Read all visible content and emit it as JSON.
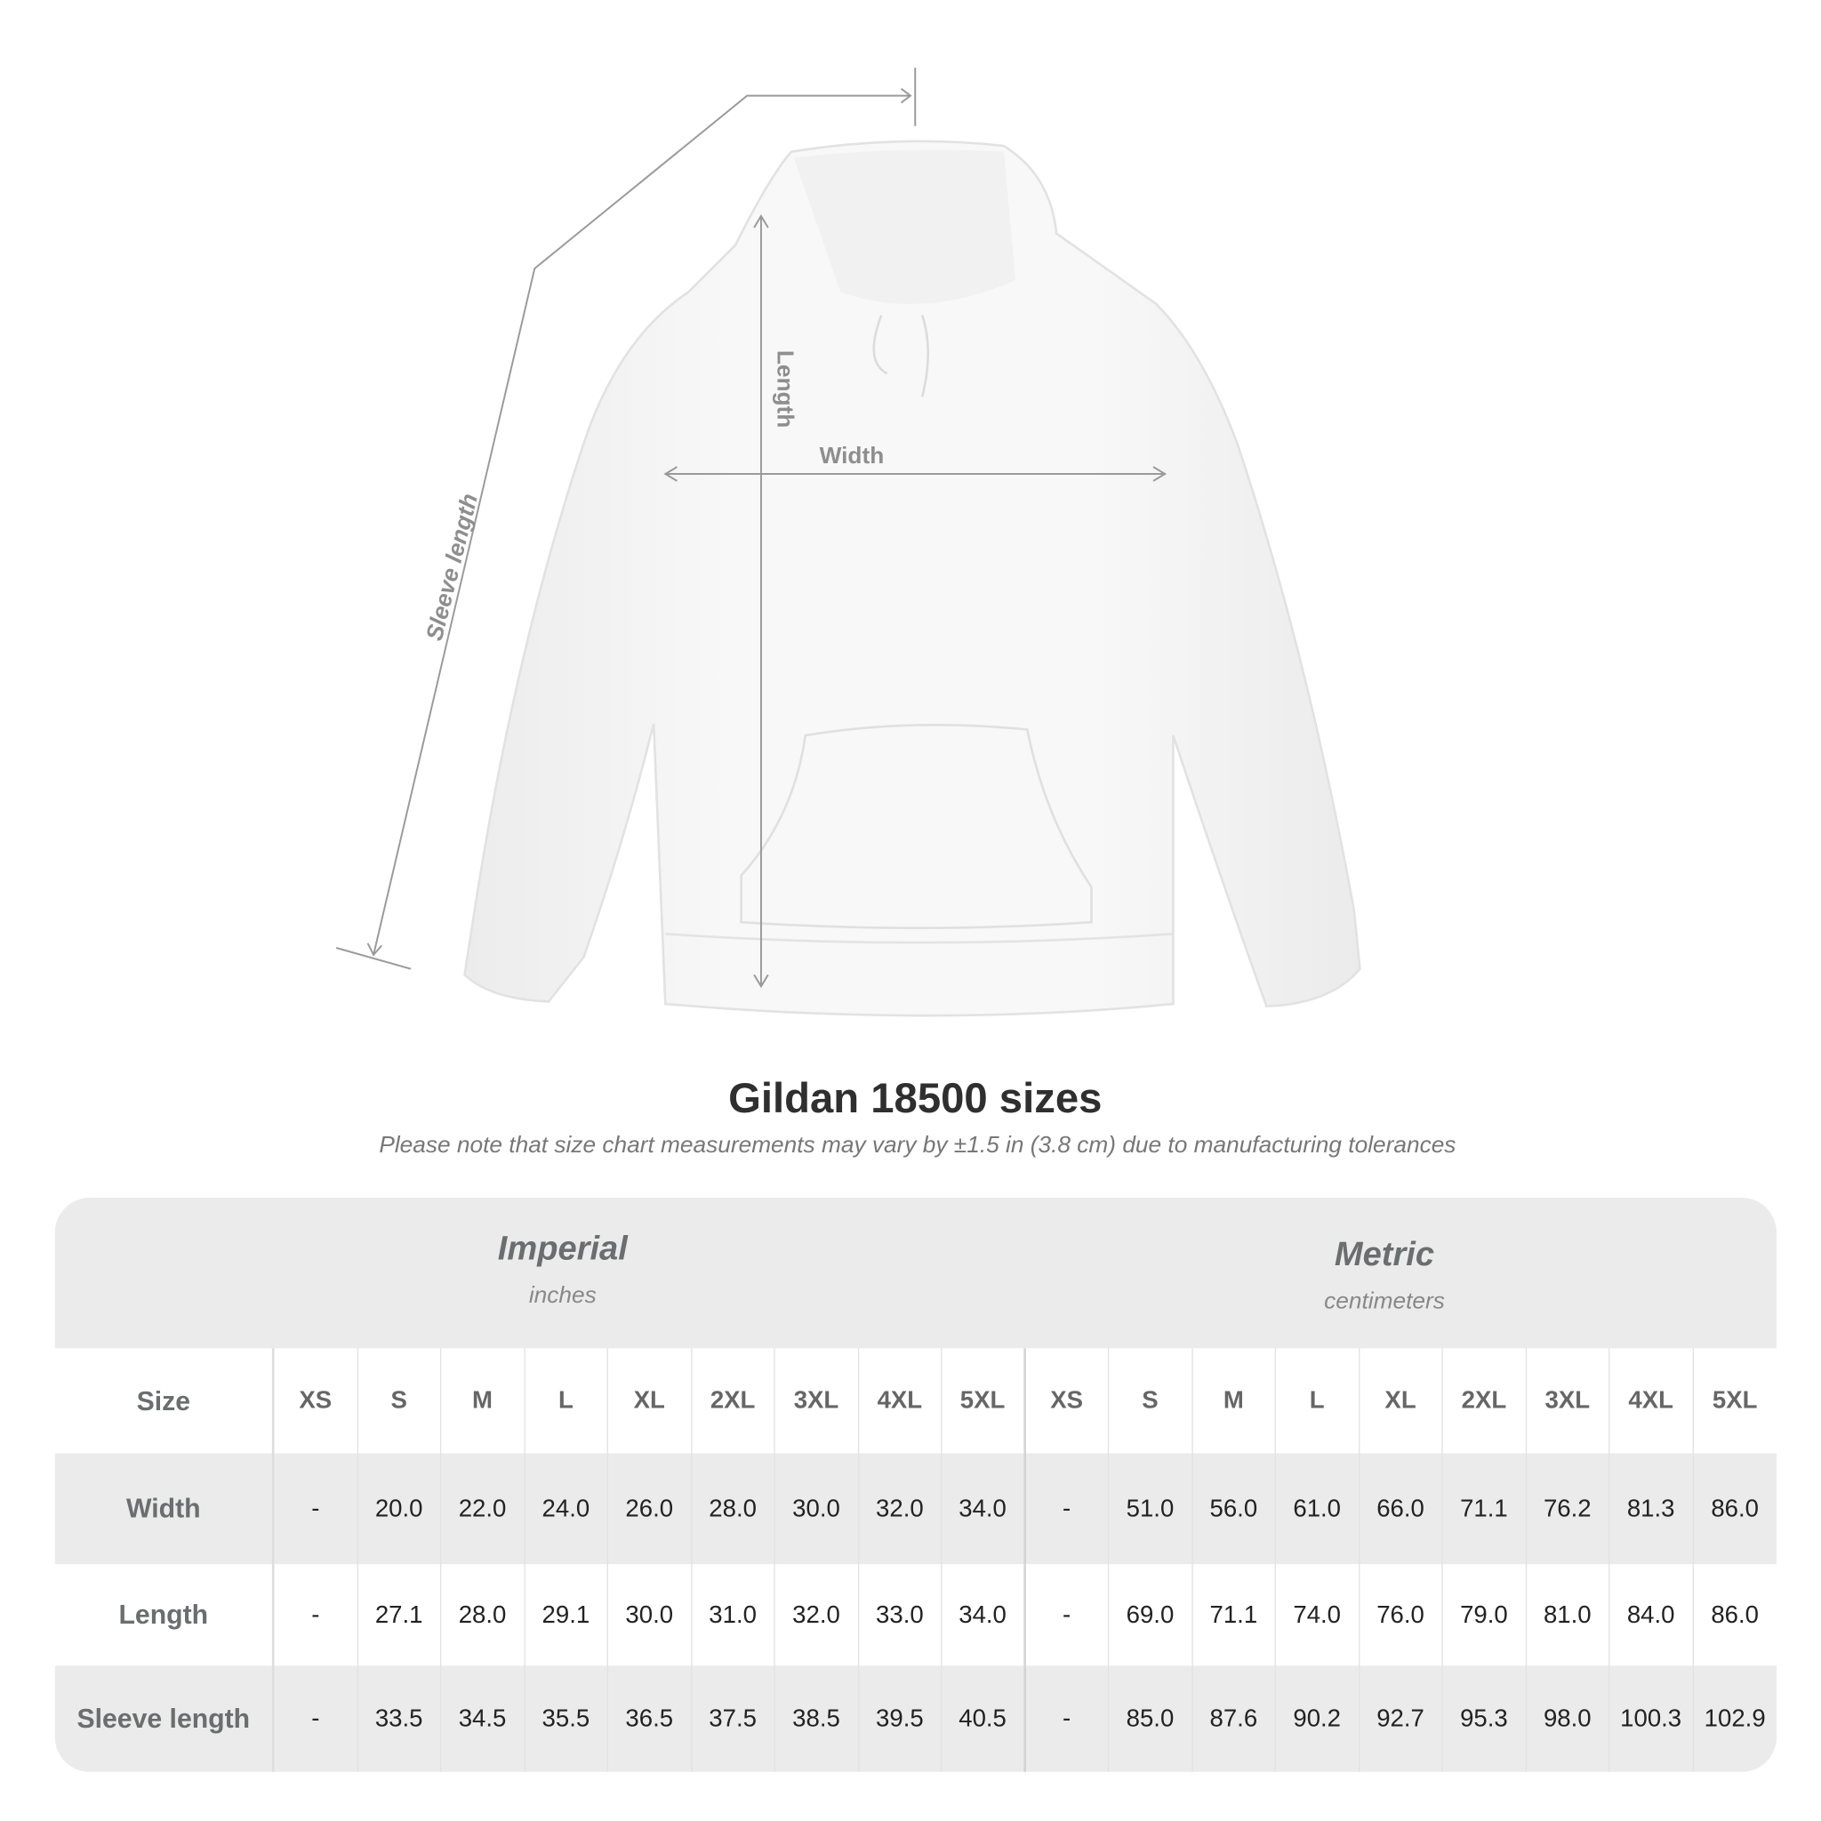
{
  "diagram": {
    "labels": {
      "sleeve": "Sleeve length",
      "length": "Length",
      "width": "Width"
    }
  },
  "title": "Gildan 18500 sizes",
  "note": "Please note that size chart measurements may vary by ±1.5 in (3.8 cm) due to manufacturing tolerances",
  "table": {
    "imperial": {
      "name": "Imperial",
      "unit": "inches"
    },
    "metric": {
      "name": "Metric",
      "unit": "centimeters"
    },
    "size_label": "Size",
    "sizes": [
      "XS",
      "S",
      "M",
      "L",
      "XL",
      "2XL",
      "3XL",
      "4XL",
      "5XL"
    ],
    "rows": [
      {
        "label": "Width",
        "imperial": [
          "-",
          "20.0",
          "22.0",
          "24.0",
          "26.0",
          "28.0",
          "30.0",
          "32.0",
          "34.0"
        ],
        "metric": [
          "-",
          "51.0",
          "56.0",
          "61.0",
          "66.0",
          "71.1",
          "76.2",
          "81.3",
          "86.0"
        ]
      },
      {
        "label": "Length",
        "imperial": [
          "-",
          "27.1",
          "28.0",
          "29.1",
          "30.0",
          "31.0",
          "32.0",
          "33.0",
          "34.0"
        ],
        "metric": [
          "-",
          "69.0",
          "71.1",
          "74.0",
          "76.0",
          "79.0",
          "81.0",
          "84.0",
          "86.0"
        ]
      },
      {
        "label": "Sleeve length",
        "imperial": [
          "-",
          "33.5",
          "34.5",
          "35.5",
          "36.5",
          "37.5",
          "38.5",
          "39.5",
          "40.5"
        ],
        "metric": [
          "-",
          "85.0",
          "87.6",
          "90.2",
          "92.7",
          "95.3",
          "98.0",
          "100.3",
          "102.9"
        ]
      }
    ]
  },
  "colors": {
    "band": "#ebebeb",
    "label": "#6b6e6e",
    "line": "#999999"
  }
}
